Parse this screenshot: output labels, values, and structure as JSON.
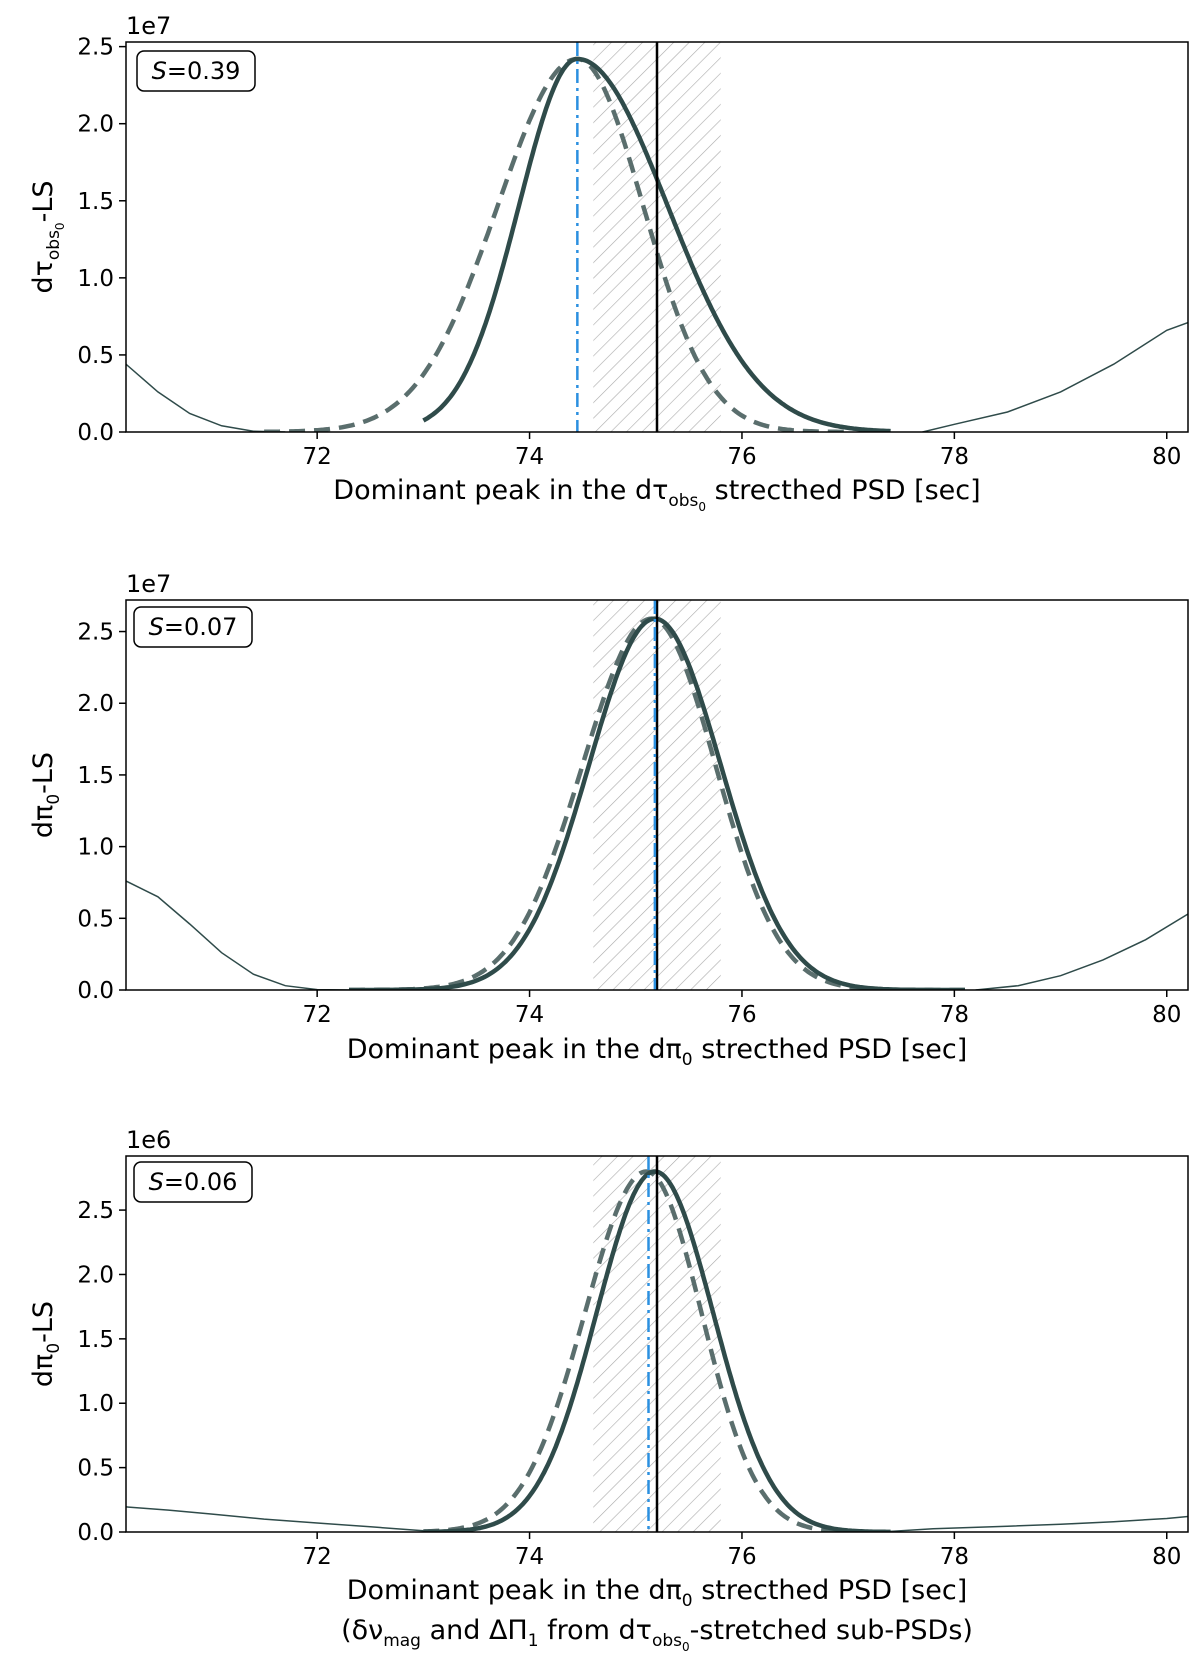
{
  "chart_data": [
    {
      "type": "line",
      "panel": "top",
      "ylabel_main": "dτ",
      "ylabel_sub": "obs",
      "ylabel_subsub": "0",
      "ylabel_suffix": "-LS",
      "xlabel_prefix": "Dominant peak in the dτ",
      "xlabel_sub": "obs",
      "xlabel_subsub": "0",
      "xlabel_suffix": " strecthed PSD [sec]",
      "multiplier": "1e7",
      "annotation_italic": "S",
      "annotation_value": "=0.39",
      "xlim": [
        70.2,
        80.2
      ],
      "ylim": [
        0,
        25300000
      ],
      "xticks": [
        72,
        74,
        76,
        78,
        80
      ],
      "xtick_labels": [
        "72",
        "74",
        "76",
        "78",
        "80"
      ],
      "yticks": [
        0,
        5000000,
        10000000,
        15000000,
        20000000,
        25000000
      ],
      "ytick_labels": [
        "0.0",
        "0.5",
        "1.0",
        "1.5",
        "2.0",
        "2.5"
      ],
      "hatch_band": [
        74.6,
        75.8
      ],
      "vline_black": 75.2,
      "vline_blue": 74.45,
      "peak_thick_x": 74.45,
      "peak_thick_y": 24200000,
      "peak_thick_sigma_left": 0.55,
      "peak_thick_sigma_right": 0.85,
      "peak_dashed_x": 74.45,
      "peak_dashed_y": 24200000,
      "peak_dashed_sigma_left": 0.75,
      "peak_dashed_sigma_right": 0.62,
      "thick_range": [
        73.0,
        77.4
      ],
      "dashed_range": [
        71.5,
        77.0
      ],
      "thin_line": [
        [
          70.2,
          4400000
        ],
        [
          70.5,
          2600000
        ],
        [
          70.8,
          1200000
        ],
        [
          71.1,
          400000
        ],
        [
          71.4,
          50000
        ],
        [
          71.7,
          0
        ],
        [
          77.7,
          0
        ],
        [
          78.0,
          500000
        ],
        [
          78.5,
          1300000
        ],
        [
          79.0,
          2600000
        ],
        [
          79.5,
          4400000
        ],
        [
          80.0,
          6600000
        ],
        [
          80.2,
          7100000
        ]
      ]
    },
    {
      "type": "line",
      "panel": "middle",
      "ylabel_main": "dπ",
      "ylabel_sub": "0",
      "ylabel_suffix": "-LS",
      "xlabel_prefix": "Dominant peak in the dπ",
      "xlabel_sub": "0",
      "xlabel_suffix": " strecthed PSD [sec]",
      "multiplier": "1e7",
      "annotation_italic": "S",
      "annotation_value": "=0.07",
      "xlim": [
        70.2,
        80.2
      ],
      "ylim": [
        0,
        27200000
      ],
      "xticks": [
        72,
        74,
        76,
        78,
        80
      ],
      "xtick_labels": [
        "72",
        "74",
        "76",
        "78",
        "80"
      ],
      "yticks": [
        0,
        5000000,
        10000000,
        15000000,
        20000000,
        25000000
      ],
      "ytick_labels": [
        "0.0",
        "0.5",
        "1.0",
        "1.5",
        "2.0",
        "2.5"
      ],
      "hatch_band": [
        74.6,
        75.8
      ],
      "vline_black": 75.2,
      "vline_blue": 75.18,
      "peak_thick_x": 75.18,
      "peak_thick_y": 25900000,
      "peak_thick_sigma_left": 0.62,
      "peak_thick_sigma_right": 0.62,
      "peak_dashed_x": 75.15,
      "peak_dashed_y": 25900000,
      "peak_dashed_sigma_left": 0.65,
      "peak_dashed_sigma_right": 0.6,
      "thick_range": [
        72.3,
        78.1
      ],
      "dashed_range": [
        72.3,
        78.1
      ],
      "thin_line": [
        [
          70.2,
          7600000
        ],
        [
          70.5,
          6500000
        ],
        [
          70.8,
          4600000
        ],
        [
          71.1,
          2600000
        ],
        [
          71.4,
          1100000
        ],
        [
          71.7,
          300000
        ],
        [
          72.0,
          30000
        ],
        [
          72.3,
          0
        ],
        [
          78.2,
          0
        ],
        [
          78.6,
          300000
        ],
        [
          79.0,
          1000000
        ],
        [
          79.4,
          2100000
        ],
        [
          79.8,
          3500000
        ],
        [
          80.2,
          5300000
        ]
      ]
    },
    {
      "type": "line",
      "panel": "bottom",
      "ylabel_main": "dπ",
      "ylabel_sub": "0",
      "ylabel_suffix": "-LS",
      "xlabel_prefix": "Dominant peak in the dπ",
      "xlabel_sub": "0",
      "xlabel_suffix": " strecthed PSD [sec]",
      "xlabel2_open": "(δν",
      "xlabel2_sub1": "mag",
      "xlabel2_mid": " and ΔΠ",
      "xlabel2_sub2": "1",
      "xlabel2_from": " from dτ",
      "xlabel2_sub3": "obs",
      "xlabel2_subsub3": "0",
      "xlabel2_end": "-stretched sub-PSDs)",
      "multiplier": "1e6",
      "annotation_italic": "S",
      "annotation_value": "=0.06",
      "xlim": [
        70.2,
        80.2
      ],
      "ylim": [
        0,
        2920000
      ],
      "xticks": [
        72,
        74,
        76,
        78,
        80
      ],
      "xtick_labels": [
        "72",
        "74",
        "76",
        "78",
        "80"
      ],
      "yticks": [
        0,
        500000,
        1000000,
        1500000,
        2000000,
        2500000
      ],
      "ytick_labels": [
        "0.0",
        "0.5",
        "1.0",
        "1.5",
        "2.0",
        "2.5"
      ],
      "hatch_band": [
        74.6,
        75.8
      ],
      "vline_black": 75.2,
      "vline_blue": 75.12,
      "peak_thick_x": 75.18,
      "peak_thick_y": 2800000,
      "peak_thick_sigma_left": 0.55,
      "peak_thick_sigma_right": 0.55,
      "peak_dashed_x": 75.1,
      "peak_dashed_y": 2800000,
      "peak_dashed_sigma_left": 0.58,
      "peak_dashed_sigma_right": 0.52,
      "thick_range": [
        73.0,
        77.4
      ],
      "dashed_range": [
        73.0,
        77.3
      ],
      "thin_line": [
        [
          70.2,
          195000
        ],
        [
          70.6,
          170000
        ],
        [
          71.0,
          140000
        ],
        [
          71.5,
          100000
        ],
        [
          72.0,
          70000
        ],
        [
          72.5,
          40000
        ],
        [
          73.0,
          10000
        ],
        [
          73.3,
          0
        ],
        [
          77.3,
          0
        ],
        [
          77.8,
          25000
        ],
        [
          78.5,
          45000
        ],
        [
          79.0,
          60000
        ],
        [
          79.5,
          80000
        ],
        [
          80.0,
          105000
        ],
        [
          80.2,
          120000
        ]
      ]
    }
  ],
  "colors": {
    "curve": "#2f4b4a",
    "dashed_curve": "#5a6e6d",
    "blue_line": "#2b90e0",
    "black_line": "#000000",
    "hatch": "#aaaaaa"
  }
}
